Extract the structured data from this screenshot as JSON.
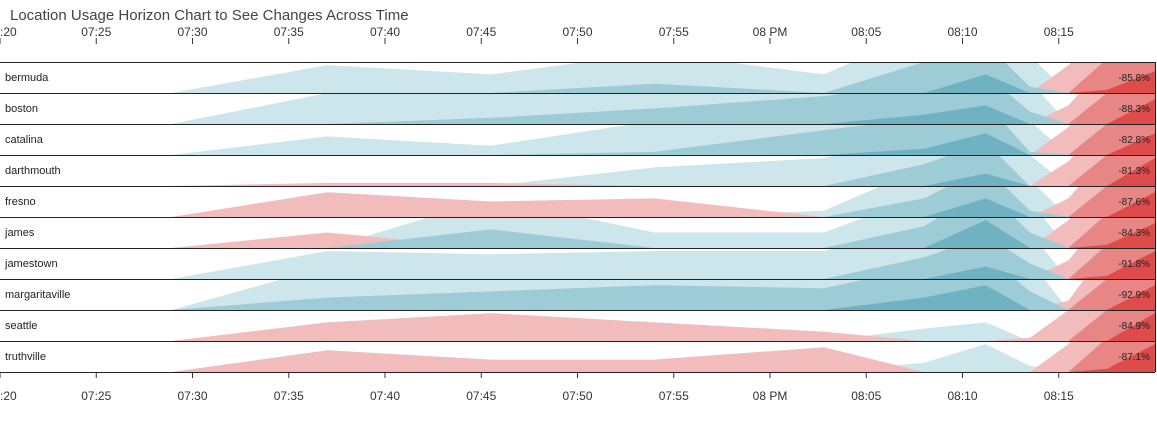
{
  "title": "Location Usage Horizon Chart to See Changes Across Time",
  "chart_data": {
    "type": "horizon",
    "title": "Location Usage Horizon Chart to See Changes Across Time",
    "x_tick_labels": [
      ":20",
      "07:25",
      "07:30",
      "07:35",
      "07:40",
      "07:45",
      "07:50",
      "07:55",
      "08 PM",
      "08:05",
      "08:10",
      "08:15"
    ],
    "x_ticks_minutes": [
      20,
      25,
      30,
      35,
      40,
      45,
      50,
      55,
      60,
      65,
      70,
      75
    ],
    "x_range_minutes": [
      20,
      80
    ],
    "x_unit": "minutes after 07:00",
    "band_size": 1,
    "positive_colors": [
      "#cde6eb",
      "#9dcbd6",
      "#6fb3c3"
    ],
    "negative_colors": [
      "#f1bcbb",
      "#e88585",
      "#de4b4b"
    ],
    "x": [
      28.9,
      37,
      45.5,
      54,
      62.8,
      68,
      71.2,
      73.5,
      75.5,
      77.5,
      80
    ],
    "series": [
      {
        "name": "bermuda",
        "label": "-85.8%",
        "values": [
          0,
          0.9,
          0.6,
          1.3,
          0.6,
          2.0,
          2.6,
          1.2,
          -0.9,
          -2.1,
          -2.7
        ]
      },
      {
        "name": "boston",
        "label": "-88.3%",
        "values": [
          0,
          1.0,
          1.2,
          1.5,
          1.9,
          2.3,
          2.6,
          1.4,
          -0.6,
          -2.0,
          -2.8
        ]
      },
      {
        "name": "catalina",
        "label": "-82.8%",
        "values": [
          0,
          0.6,
          0.3,
          1.1,
          1.8,
          2.2,
          2.7,
          1.1,
          -0.9,
          -2.0,
          -2.7
        ]
      },
      {
        "name": "darthmouth",
        "label": "-81.3%",
        "values": [
          0,
          -0.1,
          -0.1,
          0.6,
          0.9,
          1.7,
          2.4,
          1.0,
          -0.8,
          -2.0,
          -2.9
        ]
      },
      {
        "name": "fresno",
        "label": "-87.6%",
        "values": [
          0,
          -0.8,
          -0.5,
          -0.6,
          0.2,
          1.6,
          2.6,
          1.2,
          -0.6,
          -2.0,
          -2.8
        ]
      },
      {
        "name": "james",
        "label": "-84.3%",
        "values": [
          0,
          -0.5,
          1.6,
          0.5,
          0.5,
          1.7,
          2.9,
          1.5,
          -0.9,
          -2.1,
          -2.8
        ]
      },
      {
        "name": "jamestown",
        "label": "-91.8%",
        "values": [
          0,
          0.9,
          0.8,
          0.9,
          0.9,
          1.7,
          2.4,
          1.5,
          -0.6,
          -2.1,
          -2.9
        ]
      },
      {
        "name": "margaritaville",
        "label": "-92.9%",
        "values": [
          0,
          1.4,
          1.6,
          1.8,
          1.7,
          2.4,
          2.8,
          1.6,
          -0.3,
          -2.0,
          -2.8
        ]
      },
      {
        "name": "seattle",
        "label": "-84.9%",
        "values": [
          0,
          -0.6,
          -0.9,
          -0.6,
          -0.3,
          0.4,
          0.6,
          -0.1,
          -1.0,
          -2.0,
          -2.9
        ]
      },
      {
        "name": "truthville",
        "label": "-87.1%",
        "values": [
          0,
          -0.7,
          -0.4,
          -0.4,
          -0.8,
          0.3,
          0.9,
          0.2,
          -0.9,
          -2.1,
          -2.9
        ]
      }
    ]
  }
}
